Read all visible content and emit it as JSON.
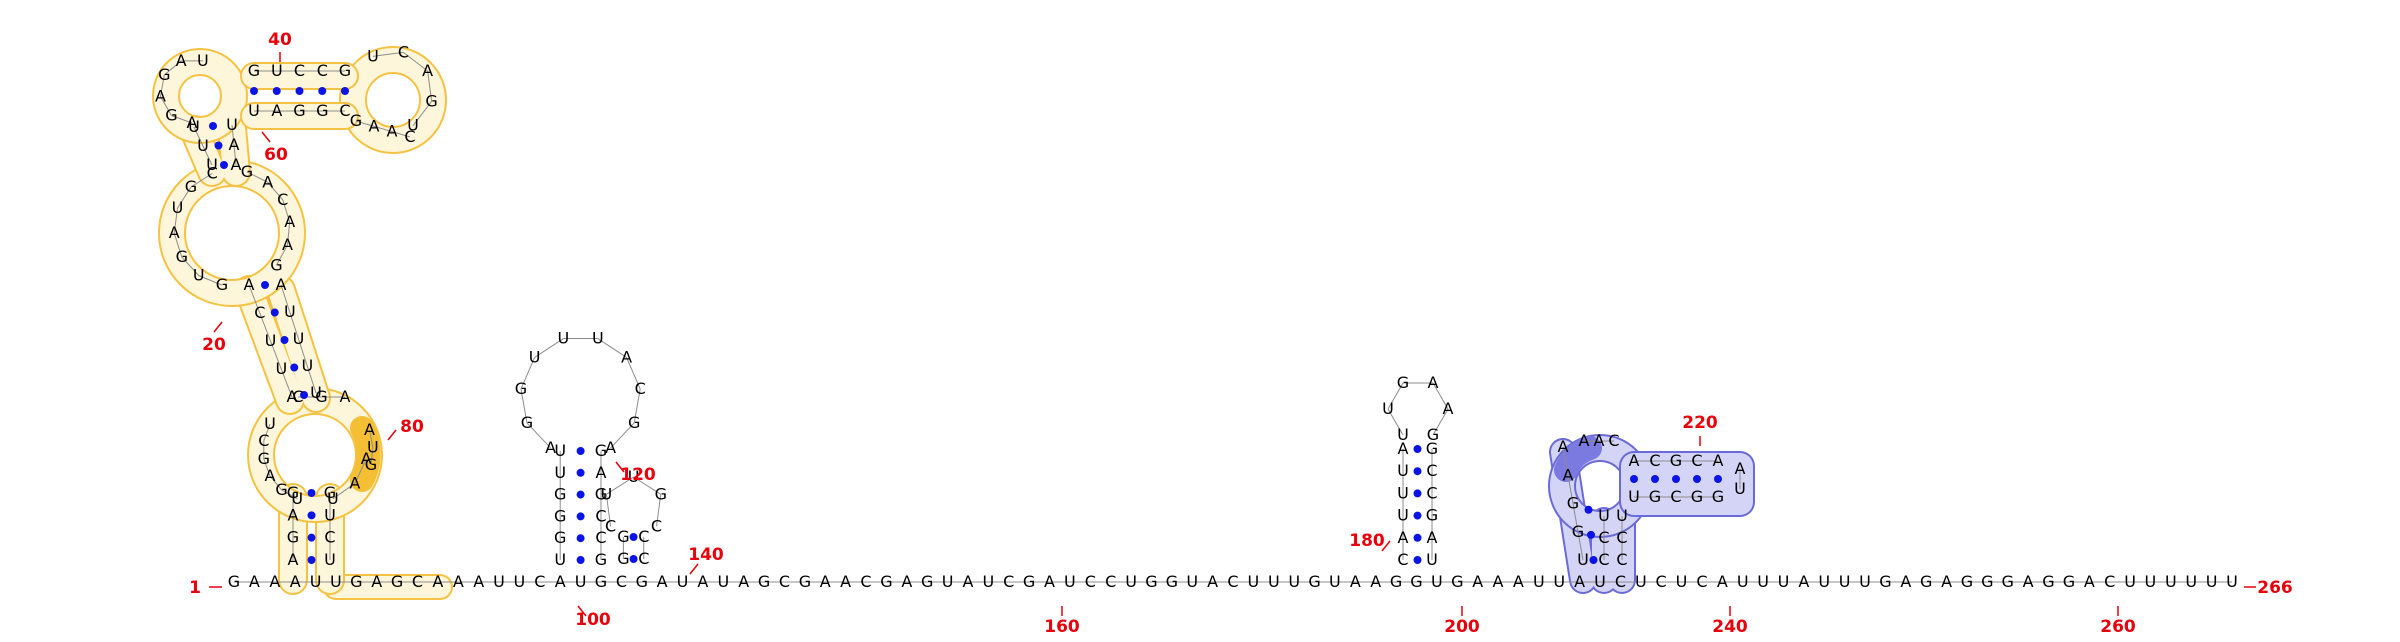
{
  "diagram": {
    "start_label": "1",
    "end_label": "266",
    "colors": {
      "number": "#e8000b",
      "pair_dot": "#0a14e6",
      "backbone": "#8c8c8c",
      "yellow_fill": "#fef6da",
      "yellow_stroke": "#f5c242",
      "yellow_accent": "#f4bf35",
      "blue_fill": "#d4d4f6",
      "blue_stroke": "#6a6ad8",
      "blue_accent": "#7a7ae0"
    },
    "baseline_sequence": "GAAAUUGAGCAAAUUCAUGCGAUAUAGCGAACGAGUAUCGAUCCUGGUACUUUGUAAGGUGAAAUUAUCUCUCAUUUAUUUGAGAGGGAGGACUUUUUU",
    "hairpin_a": {
      "stem_5": "UGGGUU",
      "loop": "AGGUUUACGA",
      "stem_3": "GCCGAG"
    },
    "hairpin_b": {
      "stem_5": "GG",
      "loop": "CUUGC",
      "stem_3": "CC"
    },
    "hairpin_c": {
      "stem_5": "CAUUUA",
      "loop": "UUGAAG",
      "stem_3": "UAGCCG"
    },
    "blue_domain": {
      "left_column": "UGGAA",
      "loop_upper": "AAC",
      "stem_upper": "ACGCA",
      "cap": "AU",
      "stem_lower": "UGCGG",
      "right_columns": [
        "CCU",
        "CCU"
      ]
    },
    "yellow_domain": {
      "foot_left": "AGAG",
      "foot_right": "UCUG",
      "inner_loop_left": "UGAGCU",
      "inner_loop_right": "AAU",
      "inner_loop_accent": "AUG",
      "inner_loop_top": "CGA",
      "helix_left": "AUUCA",
      "helix_right": "UUUUA",
      "big_loop_left": "GUGAUGC",
      "big_loop_right": "GACAAG",
      "neck_left": "UUU",
      "neck_right": "AAU",
      "cap_left": "AGAGAU",
      "cap_center_top": "GUCCG",
      "cap_center_bottom": "UAGGC",
      "cap_right_loop": "UCAGU",
      "cap_right_bottom": "GAAC"
    },
    "position_labels": [
      {
        "value": "20"
      },
      {
        "value": "40"
      },
      {
        "value": "60"
      },
      {
        "value": "80"
      },
      {
        "value": "100"
      },
      {
        "value": "120"
      },
      {
        "value": "140"
      },
      {
        "value": "160"
      },
      {
        "value": "180"
      },
      {
        "value": "200"
      },
      {
        "value": "220"
      },
      {
        "value": "240"
      },
      {
        "value": "260"
      }
    ]
  }
}
